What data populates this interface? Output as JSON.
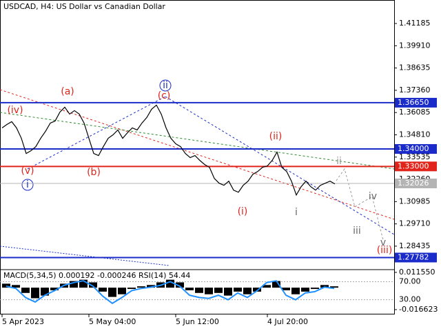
{
  "chart_data": {
    "type": "line",
    "title": "USDCAD, H4:  US Dollar vs Canadian Dollar",
    "categories": [
      "5 Apr 2023",
      null,
      null,
      null,
      null,
      null,
      null,
      null,
      null,
      null,
      null,
      null,
      null,
      null,
      null,
      null,
      null,
      null,
      "5 May 04:00",
      null,
      null,
      null,
      null,
      null,
      null,
      null,
      null,
      null,
      null,
      null,
      null,
      null,
      null,
      null,
      null,
      null,
      "5 Jun 12:00",
      null,
      null,
      null,
      null,
      null,
      null,
      null,
      null,
      null,
      null,
      null,
      null,
      null,
      null,
      null,
      null,
      null,
      null,
      "4 Jul 20:00",
      null,
      null,
      null,
      null,
      null,
      null,
      null,
      null,
      null,
      null,
      null,
      null,
      null,
      null
    ],
    "series": [
      {
        "name": "USDCAD",
        "color": "#000000",
        "values": [
          1.35205,
          1.35403,
          1.35562,
          1.35205,
          1.34611,
          1.3374,
          1.33899,
          1.34136,
          1.34611,
          1.35007,
          1.35483,
          1.35601,
          1.36116,
          1.36393,
          1.35997,
          1.36195,
          1.35997,
          1.35483,
          1.34611,
          1.3374,
          1.33621,
          1.34136,
          1.34611,
          1.34809,
          1.35087,
          1.34611,
          1.34928,
          1.35205,
          1.35087,
          1.35483,
          1.35799,
          1.36275,
          1.36512,
          1.35997,
          1.35205,
          1.34611,
          1.34295,
          1.34136,
          1.3374,
          1.33503,
          1.33621,
          1.33344,
          1.33107,
          1.32948,
          1.32315,
          1.32037,
          1.31919,
          1.32156,
          1.31641,
          1.31523,
          1.31919,
          1.32156,
          1.32552,
          1.32711,
          1.32948,
          1.33027,
          1.33344,
          1.33819,
          1.32948,
          1.32711,
          1.32156,
          1.31364,
          1.31839,
          1.32156,
          1.31839,
          1.31641,
          1.31919,
          1.32037,
          1.32156,
          1.31998
        ]
      }
    ],
    "ylim": [
      1.2709,
      1.4253
    ],
    "yticks": [
      1.41185,
      {
        "value": 1.3991,
        "label": "1.39910"
      },
      1.38635,
      {
        "value": 1.3736,
        "label": "1.37360"
      },
      1.36085,
      {
        "value": 1.3481,
        "label": "1.34810"
      },
      1.33535,
      {
        "value": 1.3226,
        "label": "1.32260"
      },
      1.30985,
      {
        "value": 1.2971,
        "label": "1.29710"
      },
      1.28435
    ],
    "levels": [
      {
        "value": 1.3665,
        "label": "1.36650",
        "color": "#1a2bc9"
      },
      {
        "value": 1.34,
        "label": "1.34000",
        "color": "#1a2bc9"
      },
      {
        "value": 1.33,
        "label": "1.33000",
        "color": "#e0241b"
      },
      {
        "value": 1.32026,
        "label": "1.32026",
        "color": "#b4b4b4"
      },
      {
        "value": 1.27782,
        "label": "1.27782",
        "color": "#1a2bc9"
      }
    ],
    "waves": [
      "(iv)",
      "(a)",
      "ii",
      "(c)",
      "(ii)",
      "(v)",
      "i",
      "(b)",
      "(i)",
      "i",
      "ii",
      "iii",
      "iv",
      "v",
      "(iii)"
    ],
    "indicator": {
      "label": "MACD(5,34,5) 0.000192 -0.000246 RSI(14) 54.44",
      "macd": [
        0.003,
        0.002,
        -0.004,
        -0.008,
        -0.006,
        -0.002,
        0.003,
        0.005,
        0.006,
        0.004,
        -0.003,
        -0.007,
        -0.005,
        -0.001,
        0.001,
        0.002,
        0.004,
        0.006,
        0.004,
        -0.002,
        -0.004,
        -0.005,
        -0.004,
        -0.006,
        -0.003,
        -0.005,
        -0.003,
        0.002,
        0.005,
        -0.002,
        -0.005,
        -0.003,
        -0.001,
        0.002,
        0.001
      ],
      "rsi": [
        60,
        55,
        35,
        25,
        40,
        50,
        62,
        68,
        72,
        60,
        38,
        22,
        35,
        50,
        55,
        58,
        62,
        70,
        60,
        40,
        35,
        33,
        40,
        30,
        45,
        35,
        50,
        68,
        72,
        40,
        30,
        45,
        48,
        58,
        55
      ],
      "ylim": [
        -2.6,
        95.2
      ],
      "yticks": [
        {
          "value": 70,
          "label": "70.00"
        },
        {
          "value": 30,
          "label": "30.00"
        }
      ],
      "y2lim": [
        -0.016623,
        0.01155
      ],
      "y2ticks": [
        {
          "value": 0.01155,
          "label": "0.011550"
        },
        -0.016623
      ]
    }
  }
}
